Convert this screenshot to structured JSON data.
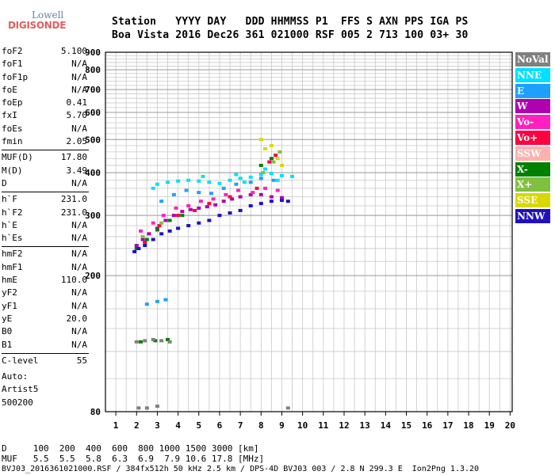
{
  "logo": {
    "line1": "Lowell",
    "line2": "DIGISONDE"
  },
  "header": {
    "row1": "Station   YYYY DAY   DDD HHMMSS P1  FFS S AXN PPS IGA PS",
    "row2": "Boa Vista 2016 Dec26 361 021000 RSF 005 2 713 100 03+ 30"
  },
  "params_group1": [
    {
      "name": "foF2",
      "value": "5.100"
    },
    {
      "name": "foF1",
      "value": "N/A"
    },
    {
      "name": "foF1p",
      "value": "N/A"
    },
    {
      "name": "foE",
      "value": "N/A"
    },
    {
      "name": "foEp",
      "value": "0.41"
    },
    {
      "name": "fxI",
      "value": "5.70"
    },
    {
      "name": "foEs",
      "value": "N/A"
    },
    {
      "name": "fmin",
      "value": "2.05"
    }
  ],
  "params_group2": [
    {
      "name": "MUF(D)",
      "value": "17.80"
    },
    {
      "name": "M(D)",
      "value": "3.49"
    },
    {
      "name": "D",
      "value": "N/A"
    }
  ],
  "params_group3": [
    {
      "name": "h`F",
      "value": "231.0"
    },
    {
      "name": "h`F2",
      "value": "231.0"
    },
    {
      "name": "h`E",
      "value": "N/A"
    },
    {
      "name": "h`Es",
      "value": "N/A"
    }
  ],
  "params_group4": [
    {
      "name": "hmF2",
      "value": "N/A"
    },
    {
      "name": "hmF1",
      "value": "N/A"
    },
    {
      "name": "hmE",
      "value": "110.0"
    },
    {
      "name": "yF2",
      "value": "N/A"
    },
    {
      "name": "yF1",
      "value": "N/A"
    },
    {
      "name": "yE",
      "value": "20.0"
    },
    {
      "name": "B0",
      "value": "N/A"
    },
    {
      "name": "B1",
      "value": "N/A"
    }
  ],
  "params_group5": [
    {
      "name": "C-level",
      "value": "55"
    }
  ],
  "auto": {
    "line1": "Auto:",
    "line2": "Artist5",
    "line3": "500200"
  },
  "legend": [
    {
      "label": "NoVal",
      "color": "#808080"
    },
    {
      "label": "NNE",
      "color": "#00e0ff"
    },
    {
      "label": "E",
      "color": "#1ea0ff"
    },
    {
      "label": "W",
      "color": "#b000b0"
    },
    {
      "label": "Vo-",
      "color": "#ff20c0"
    },
    {
      "label": "Vo+",
      "color": "#ff0040"
    },
    {
      "label": "SSW",
      "color": "#ffb0b0"
    },
    {
      "label": "X-",
      "color": "#008000"
    },
    {
      "label": "X+",
      "color": "#80c040"
    },
    {
      "label": "SSE",
      "color": "#d8d800"
    },
    {
      "label": "NNW",
      "color": "#2010c0"
    }
  ],
  "footer": {
    "d_line": "D     100  200  400  600  800 1000 1500 3000 [km]",
    "muf_line": "MUF   5.5  5.5  5.8  6.3  6.9  7.9 10.6 17.8 [MHz]",
    "file_line": "BVJ03_2016361021000.RSF / 384fx512h 50 kHz 2.5 km / DPS-4D BVJ03 003 / 2.8 N 299.3 E  Ion2Png 1.3.20"
  },
  "chart_data": {
    "type": "scatter",
    "xlabel": "",
    "ylabel": "",
    "x_ticks": [
      "1",
      "2",
      "3",
      "4",
      "5",
      "6",
      "7",
      "8",
      "9",
      "10",
      "11",
      "12",
      "13",
      "14",
      "15",
      "16",
      "17",
      "18",
      "19",
      "20"
    ],
    "y_ticks": [
      "80",
      "200",
      "300",
      "400",
      "500",
      "600",
      "700",
      "800",
      "900"
    ],
    "xlim": [
      0.5,
      20.1
    ],
    "ylim_scale": "log",
    "ylim": [
      80,
      900
    ],
    "series": [
      {
        "name": "NNE",
        "color": "#00e0ff",
        "points": [
          [
            3.0,
            370
          ],
          [
            3.5,
            375
          ],
          [
            4.0,
            378
          ],
          [
            4.5,
            380
          ],
          [
            5.0,
            378
          ],
          [
            5.5,
            375
          ],
          [
            6.0,
            372
          ],
          [
            6.5,
            380
          ],
          [
            7.0,
            385
          ],
          [
            7.5,
            388
          ],
          [
            8.0,
            395
          ],
          [
            8.5,
            398
          ],
          [
            9.0,
            392
          ],
          [
            9.5,
            390
          ],
          [
            2.8,
            360
          ],
          [
            5.2,
            390
          ],
          [
            6.8,
            395
          ],
          [
            7.2,
            375
          ],
          [
            8.2,
            410
          ],
          [
            8.8,
            380
          ]
        ]
      },
      {
        "name": "E",
        "color": "#1ea0ff",
        "points": [
          [
            3.2,
            330
          ],
          [
            3.8,
            345
          ],
          [
            4.4,
            355
          ],
          [
            5.0,
            350
          ],
          [
            5.6,
            348
          ],
          [
            6.2,
            360
          ],
          [
            6.8,
            370
          ],
          [
            7.5,
            375
          ],
          [
            8.0,
            385
          ],
          [
            8.6,
            380
          ],
          [
            2.5,
            165
          ],
          [
            3.0,
            168
          ],
          [
            3.4,
            170
          ]
        ]
      },
      {
        "name": "W",
        "color": "#b000b0",
        "points": [
          [
            2.0,
            245
          ],
          [
            2.3,
            255
          ],
          [
            2.6,
            265
          ],
          [
            3.0,
            275
          ],
          [
            3.4,
            290
          ],
          [
            3.8,
            300
          ],
          [
            4.2,
            308
          ],
          [
            4.6,
            312
          ],
          [
            5.0,
            315
          ],
          [
            5.4,
            318
          ],
          [
            5.8,
            322
          ],
          [
            6.2,
            330
          ],
          [
            6.6,
            335
          ],
          [
            7.0,
            340
          ],
          [
            7.5,
            345
          ],
          [
            8.0,
            345
          ],
          [
            8.5,
            340
          ],
          [
            9.0,
            338
          ]
        ]
      },
      {
        "name": "Vo-",
        "color": "#ff20c0",
        "points": [
          [
            2.2,
            270
          ],
          [
            2.8,
            285
          ],
          [
            3.3,
            300
          ],
          [
            3.9,
            315
          ],
          [
            4.5,
            320
          ],
          [
            5.1,
            330
          ],
          [
            5.7,
            335
          ],
          [
            6.3,
            345
          ],
          [
            6.9,
            355
          ],
          [
            7.6,
            350
          ],
          [
            8.2,
            360
          ],
          [
            8.8,
            355
          ]
        ]
      },
      {
        "name": "Vo+",
        "color": "#ff0040",
        "points": [
          [
            2.4,
            250
          ],
          [
            3.1,
            280
          ],
          [
            4.0,
            300
          ],
          [
            4.8,
            310
          ],
          [
            5.5,
            325
          ],
          [
            6.5,
            340
          ],
          [
            7.8,
            360
          ],
          [
            8.4,
            430
          ],
          [
            8.7,
            450
          ]
        ]
      },
      {
        "name": "X-",
        "color": "#008000",
        "points": [
          [
            2.0,
            240
          ],
          [
            2.5,
            255
          ],
          [
            3.0,
            272
          ],
          [
            3.6,
            290
          ],
          [
            4.2,
            300
          ],
          [
            8.0,
            420
          ],
          [
            8.5,
            440
          ],
          [
            2.2,
            128
          ],
          [
            2.9,
            129
          ],
          [
            3.5,
            130
          ]
        ]
      },
      {
        "name": "X+",
        "color": "#80c040",
        "points": [
          [
            2.3,
            260
          ],
          [
            3.2,
            285
          ],
          [
            8.1,
            400
          ],
          [
            8.6,
            430
          ],
          [
            8.9,
            460
          ]
        ]
      },
      {
        "name": "SSE",
        "color": "#d8d800",
        "points": [
          [
            8.2,
            470
          ],
          [
            8.5,
            480
          ],
          [
            8.8,
            440
          ],
          [
            8.0,
            500
          ],
          [
            9.0,
            420
          ]
        ]
      },
      {
        "name": "NNW",
        "color": "#2010c0",
        "points": [
          [
            1.9,
            235
          ],
          [
            2.1,
            240
          ],
          [
            2.4,
            245
          ],
          [
            2.8,
            255
          ],
          [
            3.2,
            265
          ],
          [
            3.6,
            270
          ],
          [
            4.0,
            275
          ],
          [
            4.5,
            280
          ],
          [
            5.0,
            285
          ],
          [
            5.5,
            290
          ],
          [
            6.0,
            300
          ],
          [
            6.5,
            305
          ],
          [
            7.0,
            310
          ],
          [
            7.5,
            320
          ],
          [
            8.0,
            325
          ],
          [
            8.5,
            330
          ],
          [
            9.0,
            332
          ],
          [
            9.3,
            330
          ]
        ]
      },
      {
        "name": "NoVal",
        "color": "#808080",
        "points": [
          [
            2.0,
            128
          ],
          [
            2.4,
            129
          ],
          [
            2.8,
            130
          ],
          [
            3.2,
            129
          ],
          [
            3.6,
            128
          ],
          [
            2.1,
            82
          ],
          [
            2.5,
            82
          ],
          [
            3.0,
            83
          ],
          [
            9.3,
            82
          ]
        ]
      }
    ]
  }
}
